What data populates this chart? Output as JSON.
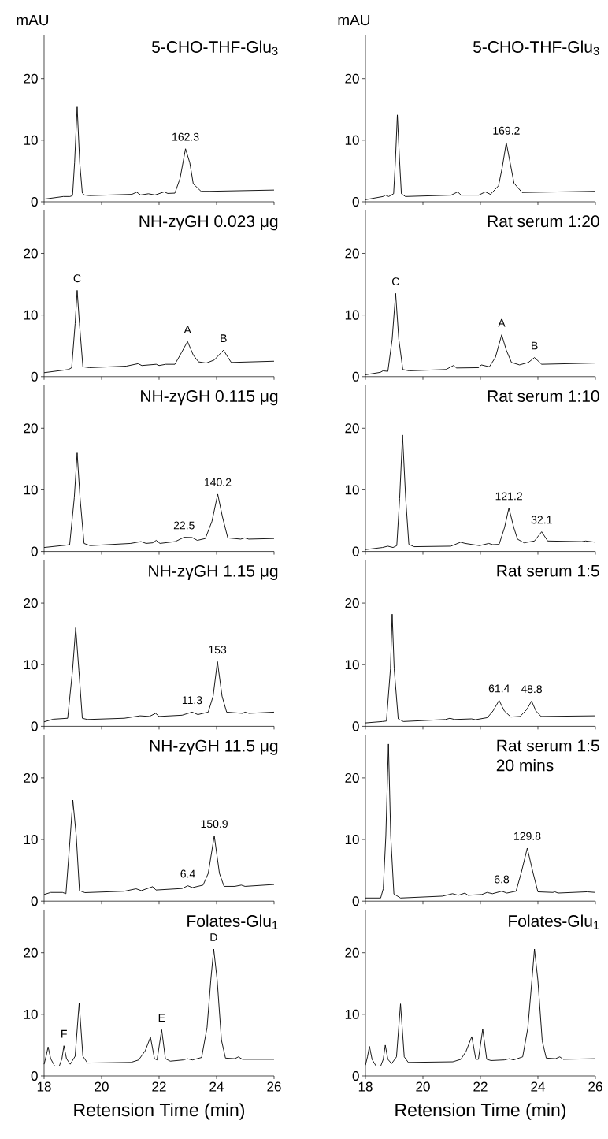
{
  "chart_data": [
    {
      "type": "line",
      "title": "5-CHO-THF-Glu$_{3}$",
      "ylabel": "mAU",
      "color": "#000000",
      "xlim": [
        18,
        26
      ],
      "xticks": [
        18,
        20,
        22,
        24,
        26
      ],
      "ylim": [
        0,
        27
      ],
      "yticks": [
        0,
        10,
        20
      ],
      "tick_labels": "y",
      "x": [
        18,
        18.67,
        18.9,
        18.99,
        19.06,
        19.15,
        19.24,
        19.33,
        19.4,
        19.58,
        21.05,
        21.22,
        21.36,
        21.63,
        21.86,
        22.18,
        22.3,
        22.55,
        22.73,
        22.92,
        23.07,
        23.19,
        23.46,
        23.78,
        26
      ],
      "values": [
        0.43,
        0.85,
        0.85,
        1.0,
        6.3,
        15.4,
        6.3,
        1.4,
        1.1,
        1.0,
        1.2,
        1.55,
        1.1,
        1.3,
        1.1,
        1.6,
        1.35,
        1.4,
        3.8,
        8.6,
        6.3,
        2.9,
        1.7,
        1.7,
        1.9
      ],
      "annotations": [
        {
          "text": "162.3",
          "x": 22.92,
          "y": 8.6
        }
      ]
    },
    {
      "type": "line",
      "title": "5-CHO-THF-Glu$_{3}$",
      "ylabel": "mAU",
      "color": "#000000",
      "xlim": [
        18,
        26
      ],
      "xticks": [
        18,
        20,
        22,
        24,
        26
      ],
      "ylim": [
        0,
        27
      ],
      "yticks": [
        0,
        10,
        20
      ],
      "tick_labels": "y",
      "x": [
        18,
        18.61,
        18.7,
        18.81,
        18.98,
        19.04,
        19.11,
        19.19,
        19.25,
        19.39,
        20.98,
        21.21,
        21.33,
        21.94,
        22.17,
        22.35,
        22.63,
        22.76,
        22.9,
        23.03,
        23.17,
        23.45,
        26
      ],
      "values": [
        0.34,
        0.85,
        1.07,
        0.85,
        1.3,
        6.4,
        14.1,
        6.4,
        1.3,
        0.85,
        1.07,
        1.6,
        1.07,
        1.07,
        1.6,
        1.2,
        2.6,
        5.6,
        9.6,
        6.4,
        3.0,
        1.5,
        1.7
      ],
      "annotations": [
        {
          "text": "169.2",
          "x": 22.9,
          "y": 9.6
        }
      ]
    },
    {
      "type": "line",
      "title": "NH-zγGH 0.023 μg",
      "color": "#000000",
      "xlim": [
        18,
        26
      ],
      "xticks": [
        18,
        20,
        22,
        24,
        26
      ],
      "ylim": [
        0,
        27
      ],
      "yticks": [
        0,
        10,
        20
      ],
      "tick_labels": "y",
      "x": [
        18,
        18.85,
        18.96,
        19.08,
        19.15,
        19.23,
        19.35,
        19.58,
        20.86,
        21.27,
        21.4,
        21.9,
        22.0,
        22.23,
        22.55,
        22.78,
        22.99,
        23.19,
        23.37,
        23.64,
        23.92,
        24.24,
        24.4,
        24.51,
        26
      ],
      "values": [
        0.64,
        1.15,
        1.45,
        8.6,
        14.0,
        8.6,
        1.6,
        1.45,
        1.7,
        2.1,
        1.8,
        2.0,
        1.8,
        2.0,
        2.0,
        3.9,
        5.7,
        3.5,
        2.4,
        2.2,
        2.7,
        4.3,
        3.1,
        2.3,
        2.5
      ],
      "annotations": [
        {
          "text": "C",
          "x": 19.15,
          "y": 14.0
        },
        {
          "text": "A",
          "x": 22.99,
          "y": 5.7
        },
        {
          "text": "B",
          "x": 24.24,
          "y": 4.3
        }
      ]
    },
    {
      "type": "line",
      "title": "Rat serum 1:20",
      "color": "#000000",
      "xlim": [
        18,
        26
      ],
      "xticks": [
        18,
        20,
        22,
        24,
        26
      ],
      "ylim": [
        0,
        27
      ],
      "yticks": [
        0,
        10,
        20
      ],
      "tick_labels": "y",
      "x": [
        18,
        18.52,
        18.61,
        18.78,
        18.93,
        19.05,
        19.16,
        19.3,
        19.52,
        20.8,
        21.06,
        21.17,
        21.94,
        22.03,
        22.31,
        22.52,
        22.74,
        22.9,
        23.08,
        23.36,
        23.67,
        23.88,
        24.13,
        26
      ],
      "values": [
        0.3,
        0.7,
        0.94,
        0.85,
        6.1,
        13.5,
        6.1,
        1.15,
        0.94,
        1.15,
        1.8,
        1.4,
        1.45,
        1.9,
        1.6,
        3.1,
        6.8,
        4.3,
        2.3,
        1.9,
        2.3,
        3.1,
        2.0,
        2.2
      ],
      "annotations": [
        {
          "text": "C",
          "x": 19.05,
          "y": 13.5
        },
        {
          "text": "A",
          "x": 22.74,
          "y": 6.8
        },
        {
          "text": "B",
          "x": 23.88,
          "y": 3.1
        }
      ]
    },
    {
      "type": "line",
      "title": "NH-zγGH 0.115 μg",
      "color": "#000000",
      "xlim": [
        18,
        26
      ],
      "xticks": [
        18,
        20,
        22,
        24,
        26
      ],
      "ylim": [
        0,
        27
      ],
      "yticks": [
        0,
        10,
        20
      ],
      "tick_labels": "y",
      "x": [
        18,
        18.73,
        18.89,
        19.05,
        19.15,
        19.25,
        19.39,
        19.6,
        21.01,
        21.37,
        21.55,
        21.78,
        21.9,
        22.03,
        22.56,
        22.87,
        23.15,
        23.33,
        23.61,
        23.84,
        24.04,
        24.2,
        24.39,
        24.84,
        24.98,
        25.12,
        26
      ],
      "values": [
        0.64,
        1.0,
        1.1,
        8.7,
        16.0,
        8.7,
        1.3,
        0.94,
        1.3,
        1.6,
        1.3,
        1.4,
        1.8,
        1.3,
        1.6,
        2.3,
        2.26,
        1.8,
        2.1,
        4.9,
        9.3,
        5.7,
        2.2,
        2.0,
        2.2,
        2.0,
        2.1
      ],
      "annotations": [
        {
          "text": "140.2",
          "x": 24.04,
          "y": 9.3
        },
        {
          "text": "22.5",
          "x": 22.87,
          "y": 2.3
        }
      ]
    },
    {
      "type": "line",
      "title": "Rat serum 1:10",
      "color": "#000000",
      "xlim": [
        18,
        26
      ],
      "xticks": [
        18,
        20,
        22,
        24,
        26
      ],
      "ylim": [
        0,
        27
      ],
      "yticks": [
        0,
        10,
        20
      ],
      "tick_labels": "y",
      "x": [
        18,
        18.59,
        18.78,
        18.96,
        19.09,
        19.19,
        19.29,
        19.4,
        19.51,
        19.69,
        20.97,
        21.31,
        21.47,
        21.97,
        22.29,
        22.43,
        22.65,
        22.84,
        22.99,
        23.16,
        23.29,
        23.52,
        23.88,
        24.13,
        24.34,
        25.53,
        25.66,
        26
      ],
      "values": [
        0.3,
        0.64,
        0.85,
        0.64,
        0.94,
        8.6,
        18.9,
        8.6,
        1.15,
        0.77,
        0.85,
        1.5,
        1.3,
        0.94,
        1.3,
        1.1,
        1.15,
        3.9,
        7.05,
        3.9,
        2.0,
        1.4,
        1.7,
        3.2,
        1.7,
        1.6,
        1.7,
        1.5
      ],
      "annotations": [
        {
          "text": "121.2",
          "x": 22.99,
          "y": 7.05
        },
        {
          "text": "32.1",
          "x": 24.13,
          "y": 3.2
        }
      ]
    },
    {
      "type": "line",
      "title": "NH-zγGH 1.15 μg",
      "color": "#000000",
      "xlim": [
        18,
        26
      ],
      "xticks": [
        18,
        20,
        22,
        24,
        26
      ],
      "ylim": [
        0,
        27
      ],
      "yticks": [
        0,
        10,
        20
      ],
      "tick_labels": "y",
      "x": [
        18,
        18.32,
        18.82,
        18.99,
        19.1,
        19.21,
        19.33,
        19.51,
        20.79,
        21.34,
        21.66,
        21.88,
        22.0,
        22.8,
        23.15,
        23.35,
        23.71,
        23.88,
        24.03,
        24.19,
        24.35,
        24.9,
        24.99,
        25.13,
        26
      ],
      "values": [
        0.72,
        1.15,
        1.3,
        9.1,
        16.0,
        9.1,
        1.3,
        1.1,
        1.3,
        1.7,
        1.6,
        2.1,
        1.6,
        1.8,
        2.3,
        1.9,
        2.3,
        4.9,
        10.5,
        4.9,
        2.3,
        2.1,
        2.3,
        2.1,
        2.3
      ],
      "annotations": [
        {
          "text": "153",
          "x": 24.03,
          "y": 10.5
        },
        {
          "text": "11.3",
          "x": 23.15,
          "y": 2.3
        }
      ]
    },
    {
      "type": "line",
      "title": "Rat serum 1:5",
      "color": "#000000",
      "xlim": [
        18,
        26
      ],
      "xticks": [
        18,
        20,
        22,
        24,
        26
      ],
      "ylim": [
        0,
        27
      ],
      "yticks": [
        0,
        10,
        20
      ],
      "tick_labels": "y",
      "x": [
        18,
        18.59,
        18.73,
        18.87,
        18.93,
        19.0,
        19.14,
        19.32,
        20.78,
        20.94,
        21.1,
        21.69,
        21.83,
        22.24,
        22.44,
        22.65,
        22.83,
        23.06,
        23.38,
        23.61,
        23.78,
        23.93,
        24.11,
        26
      ],
      "values": [
        0.55,
        0.77,
        0.85,
        9.3,
        18.2,
        9.3,
        1.2,
        0.77,
        1.1,
        1.3,
        1.1,
        1.2,
        1.07,
        1.4,
        2.5,
        4.2,
        2.5,
        1.5,
        1.6,
        2.7,
        4.1,
        2.5,
        1.6,
        1.7
      ],
      "annotations": [
        {
          "text": "61.4",
          "x": 22.65,
          "y": 4.2
        },
        {
          "text": "48.8",
          "x": 23.78,
          "y": 4.1
        }
      ]
    },
    {
      "type": "line",
      "title": "NH-zγGH 11.5 μg",
      "color": "#000000",
      "xlim": [
        18,
        26
      ],
      "xticks": [
        18,
        20,
        22,
        24,
        26
      ],
      "ylim": [
        0,
        27
      ],
      "yticks": [
        0,
        10,
        20
      ],
      "tick_labels": "y",
      "x": [
        18,
        18.23,
        18.64,
        18.76,
        18.91,
        19.0,
        19.12,
        19.23,
        19.42,
        20.79,
        21.2,
        21.38,
        21.78,
        21.89,
        22.8,
        23.0,
        23.16,
        23.53,
        23.71,
        23.92,
        24.1,
        24.26,
        24.63,
        24.86,
        24.99,
        26
      ],
      "values": [
        1.07,
        1.4,
        1.4,
        1.2,
        10.5,
        16.4,
        10.5,
        1.7,
        1.37,
        1.6,
        2.0,
        1.7,
        2.35,
        1.8,
        2.05,
        2.5,
        2.2,
        2.6,
        4.5,
        10.6,
        4.5,
        2.4,
        2.4,
        2.6,
        2.4,
        2.7
      ],
      "annotations": [
        {
          "text": "150.9",
          "x": 23.92,
          "y": 10.6
        },
        {
          "text": "6.4",
          "x": 23.0,
          "y": 2.5
        }
      ]
    },
    {
      "type": "line",
      "title": "Rat serum 1:5",
      "subtitle": "20 mins",
      "color": "#000000",
      "xlim": [
        18,
        26
      ],
      "xticks": [
        18,
        20,
        22,
        24,
        26
      ],
      "ylim": [
        0,
        27
      ],
      "yticks": [
        0,
        10,
        20
      ],
      "tick_labels": "y",
      "x": [
        18,
        18.53,
        18.62,
        18.71,
        18.8,
        18.88,
        18.99,
        19.22,
        20.68,
        21.03,
        21.23,
        21.46,
        21.57,
        22.05,
        22.23,
        22.42,
        22.74,
        22.92,
        23.24,
        23.42,
        23.63,
        23.83,
        24.0,
        24.52,
        24.59,
        24.7,
        25.71,
        26
      ],
      "values": [
        0.5,
        0.5,
        2.0,
        10.6,
        25.5,
        10.6,
        1.15,
        0.5,
        0.8,
        1.2,
        0.94,
        1.3,
        0.94,
        1.07,
        1.4,
        1.2,
        1.6,
        1.3,
        1.6,
        4.6,
        8.6,
        4.6,
        1.5,
        1.4,
        1.5,
        1.3,
        1.5,
        1.4
      ],
      "annotations": [
        {
          "text": "129.8",
          "x": 23.63,
          "y": 8.6
        },
        {
          "text": "6.8",
          "x": 22.74,
          "y": 1.6
        }
      ]
    },
    {
      "type": "line",
      "title": "Folates-Glu$_{1}$",
      "xlabel": "Retension Time (min)",
      "color": "#000000",
      "xlim": [
        18,
        26
      ],
      "xticks": [
        18,
        20,
        22,
        24,
        26
      ],
      "ylim": [
        0,
        27
      ],
      "yticks": [
        0,
        10,
        20
      ],
      "x": [
        18,
        18.07,
        18.14,
        18.23,
        18.37,
        18.53,
        18.62,
        18.69,
        18.78,
        18.91,
        19.08,
        19.22,
        19.35,
        19.51,
        21.02,
        21.29,
        21.52,
        21.7,
        21.84,
        21.93,
        22.09,
        22.22,
        22.39,
        22.84,
        22.98,
        23.16,
        23.48,
        23.67,
        23.8,
        23.9,
        24.02,
        24.17,
        24.31,
        24.63,
        24.76,
        24.9,
        26
      ],
      "values": [
        1.9,
        3.2,
        4.7,
        2.8,
        1.6,
        1.6,
        2.8,
        4.9,
        2.8,
        1.9,
        3.2,
        11.8,
        3.2,
        2.1,
        2.2,
        2.6,
        4.1,
        6.3,
        2.8,
        2.6,
        7.5,
        2.8,
        2.4,
        2.6,
        2.8,
        2.6,
        3.0,
        7.9,
        15.6,
        20.6,
        15.6,
        5.8,
        2.9,
        2.8,
        3.1,
        2.7,
        2.7
      ],
      "annotations": [
        {
          "text": "F",
          "x": 18.69,
          "y": 4.9
        },
        {
          "text": "E",
          "x": 22.09,
          "y": 7.5
        },
        {
          "text": "D",
          "x": 23.9,
          "y": 20.6
        }
      ]
    },
    {
      "type": "line",
      "title": "Folates-Glu$_{1}$",
      "xlabel": "Retension Time (min)",
      "color": "#000000",
      "xlim": [
        18,
        26
      ],
      "xticks": [
        18,
        20,
        22,
        24,
        26
      ],
      "ylim": [
        0,
        27
      ],
      "yticks": [
        0,
        10,
        20
      ],
      "x": [
        18,
        18.07,
        18.14,
        18.23,
        18.37,
        18.53,
        18.62,
        18.69,
        18.78,
        18.91,
        19.08,
        19.22,
        19.35,
        19.49,
        21.04,
        21.32,
        21.5,
        21.7,
        21.84,
        21.93,
        22.08,
        22.22,
        22.37,
        22.83,
        23.01,
        23.15,
        23.47,
        23.65,
        23.79,
        23.88,
        24.0,
        24.15,
        24.29,
        24.61,
        24.76,
        24.88,
        26
      ],
      "values": [
        1.75,
        3.1,
        4.8,
        2.7,
        1.6,
        1.6,
        2.7,
        5.0,
        2.7,
        2.0,
        3.1,
        11.7,
        3.1,
        2.2,
        2.3,
        2.7,
        4.0,
        6.4,
        2.7,
        2.7,
        7.6,
        2.7,
        2.5,
        2.6,
        2.8,
        2.6,
        3.1,
        7.8,
        15.5,
        20.6,
        15.5,
        5.7,
        2.9,
        2.8,
        3.1,
        2.7,
        2.8
      ]
    }
  ]
}
